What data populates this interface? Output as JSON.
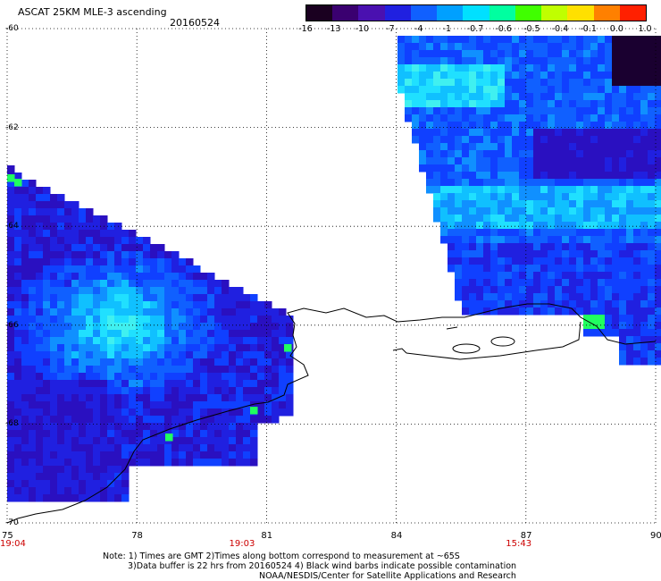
{
  "header": {
    "title": "ASCAT 25KM MLE-3 ascending",
    "date": "20160524"
  },
  "colorbar": {
    "ticks": [
      "-16",
      "-13",
      "-10",
      "-7",
      "-4",
      "-1",
      "-0.7",
      "-0.6",
      "-0.5",
      "-0.4",
      "-0.1",
      "0.0",
      "1.0"
    ],
    "colors": [
      "#1a0020",
      "#3a0070",
      "#4a10b0",
      "#2020e0",
      "#1060ff",
      "#00a0ff",
      "#00e0ff",
      "#00ffa0",
      "#40ff00",
      "#c0ff00",
      "#ffe000",
      "#ff8000",
      "#ff2000"
    ]
  },
  "map": {
    "x_ticks": [
      "75",
      "78",
      "81",
      "84",
      "87",
      "90"
    ],
    "y_ticks": [
      "-60",
      "-62",
      "-64",
      "-66",
      "-68",
      "-70"
    ],
    "times": [
      {
        "label": "19:04",
        "lon": 75
      },
      {
        "label": "19:03",
        "lon": 80.3
      },
      {
        "label": "15:43",
        "lon": 86.7
      }
    ]
  },
  "notes": {
    "line1": "Note: 1) Times are GMT 2)Times along bottom correspond to measurement at ~65S",
    "line2": "3)Data buffer is 22 hrs from 20160524 4) Black wind barbs indicate possible contamination",
    "line3": "NOAA/NESDIS/Center for Satellite Applications and Research"
  }
}
